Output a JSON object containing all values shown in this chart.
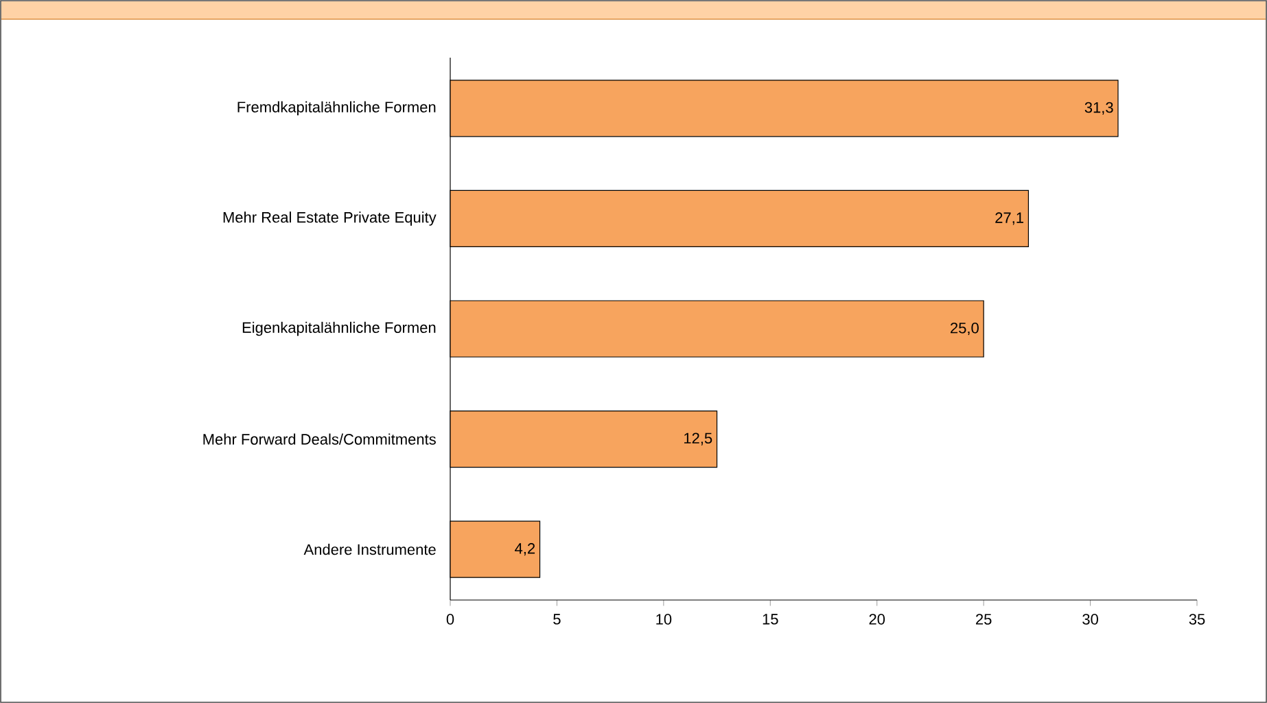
{
  "chart_data": {
    "type": "bar",
    "orientation": "horizontal",
    "categories": [
      "Fremdkapitalähnliche Formen",
      "Mehr Real Estate Private Equity",
      "Eigenkapitalähnliche Formen",
      "Mehr Forward Deals/Commitments",
      "Andere Instrumente"
    ],
    "values": [
      31.3,
      27.1,
      25.0,
      12.5,
      4.2
    ],
    "value_labels": [
      "31,3",
      "27,1",
      "25,0",
      "12,5",
      "4,2"
    ],
    "color": "#f7a45e",
    "xlim": [
      0,
      35
    ],
    "xticks": [
      0,
      5,
      10,
      15,
      20,
      25,
      30,
      35
    ]
  }
}
